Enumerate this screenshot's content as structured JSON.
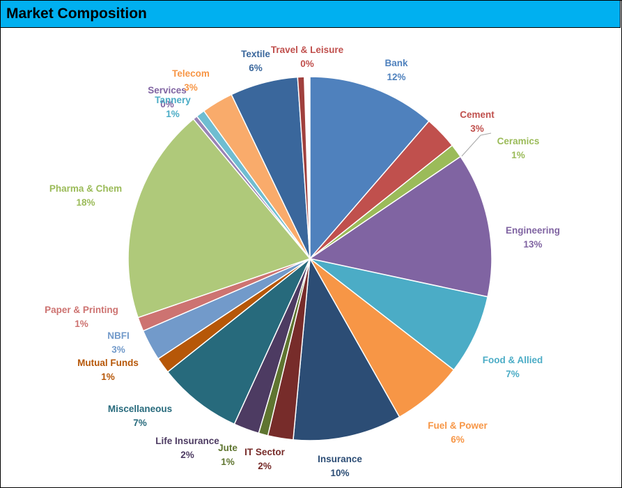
{
  "header": {
    "title": "Market Composition"
  },
  "chart_data": {
    "type": "pie",
    "title": "",
    "legend": "none",
    "slices": [
      {
        "name": "Bank",
        "value": 12,
        "label": "12%",
        "color": "#4f81bd"
      },
      {
        "name": "Cement",
        "value": 3,
        "label": "3%",
        "color": "#c0504d"
      },
      {
        "name": "Ceramics",
        "value": 1,
        "label": "1%",
        "color": "#9bbb59"
      },
      {
        "name": "Engineering",
        "value": 13,
        "label": "13%",
        "color": "#8064a2"
      },
      {
        "name": "Food & Allied",
        "value": 7,
        "label": "7%",
        "color": "#4bacc6"
      },
      {
        "name": "Fuel & Power",
        "value": 6,
        "label": "6%",
        "color": "#f79646"
      },
      {
        "name": "Insurance",
        "value": 10,
        "label": "10%",
        "color": "#2c4d75"
      },
      {
        "name": "IT Sector",
        "value": 2,
        "label": "2%",
        "color": "#772c2a"
      },
      {
        "name": "Jute",
        "value": 1,
        "label": "1%",
        "color": "#5f7530"
      },
      {
        "name": "Life Insurance",
        "value": 2,
        "label": "2%",
        "color": "#4d3b62"
      },
      {
        "name": "Miscellaneous",
        "value": 7,
        "label": "7%",
        "color": "#276a7c"
      },
      {
        "name": "Mutual Funds",
        "value": 1,
        "label": "1%",
        "color": "#b65708"
      },
      {
        "name": "NBFI",
        "value": 3,
        "label": "3%",
        "color": "#729aca"
      },
      {
        "name": "Paper & Printing",
        "value": 1,
        "label": "1%",
        "color": "#cd7371"
      },
      {
        "name": "Pharma & Chem",
        "value": 18,
        "label": "18%",
        "color": "#afc97a"
      },
      {
        "name": "Services",
        "value": 0,
        "label": "0%",
        "color": "#9983b5"
      },
      {
        "name": "Tannery",
        "value": 1,
        "label": "1%",
        "color": "#6fbdd1"
      },
      {
        "name": "Telecom",
        "value": 3,
        "label": "3%",
        "color": "#f9ab6b"
      },
      {
        "name": "Textile",
        "value": 6,
        "label": "6%",
        "color": "#3a679c"
      },
      {
        "name": "Travel & Leisure",
        "value": 0,
        "label": "0%",
        "color": "#a0403d"
      }
    ]
  }
}
